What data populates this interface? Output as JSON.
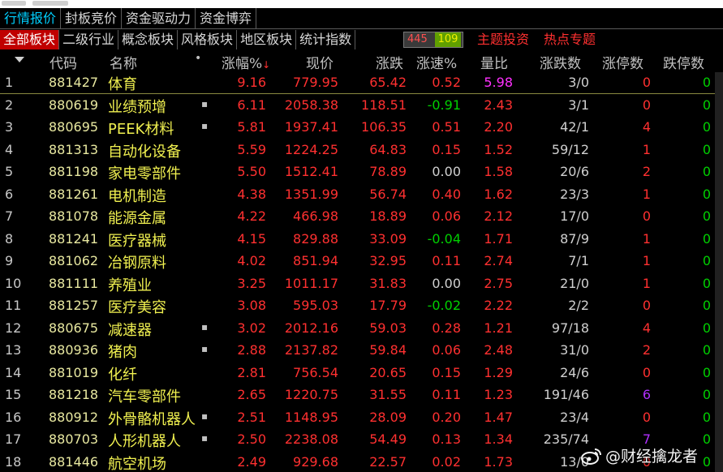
{
  "tabs_top": [
    "行情报价",
    "封板竞价",
    "资金驱动力",
    "资金博弈"
  ],
  "tabs_category": [
    "全部板块",
    "二级行业",
    "概念板块",
    "风格板块",
    "地区板块",
    "统计指数"
  ],
  "counter": {
    "up": "445",
    "down": "109"
  },
  "themes": {
    "theme_invest": "主题投资",
    "hot_topics": "热点专题"
  },
  "header": {
    "code": "代码",
    "name": "名称",
    "dot": "•",
    "pct": "涨幅%",
    "price": "现价",
    "change": "涨跌",
    "speed": "涨速%",
    "vol_ratio": "量比",
    "adv_dec": "涨跌数",
    "limit_up": "涨停数",
    "limit_down": "跌停数"
  },
  "rows": [
    {
      "no": "1",
      "code": "881427",
      "name": "体育",
      "dot": "",
      "pct": "9.16",
      "price": "779.95",
      "chg": "65.42",
      "spd": "0.52",
      "vol": "5.98",
      "adv": "3/0",
      "lu": "0",
      "ld": "0"
    },
    {
      "no": "2",
      "code": "880619",
      "name": "业绩预增",
      "dot": "▪",
      "pct": "6.11",
      "price": "2058.38",
      "chg": "118.51",
      "spd": "-0.91",
      "vol": "2.43",
      "adv": "3/1",
      "lu": "0",
      "ld": "0"
    },
    {
      "no": "3",
      "code": "880695",
      "name": "PEEK材料",
      "dot": "▪",
      "pct": "5.81",
      "price": "1937.41",
      "chg": "106.35",
      "spd": "0.51",
      "vol": "2.20",
      "adv": "42/1",
      "lu": "4",
      "ld": "0"
    },
    {
      "no": "4",
      "code": "881313",
      "name": "自动化设备",
      "dot": "",
      "pct": "5.59",
      "price": "1224.25",
      "chg": "64.83",
      "spd": "0.15",
      "vol": "1.52",
      "adv": "59/12",
      "lu": "1",
      "ld": "0"
    },
    {
      "no": "5",
      "code": "881198",
      "name": "家电零部件",
      "dot": "",
      "pct": "5.50",
      "price": "1512.41",
      "chg": "78.89",
      "spd": "0.00",
      "vol": "1.58",
      "adv": "20/6",
      "lu": "2",
      "ld": "0"
    },
    {
      "no": "6",
      "code": "881261",
      "name": "电机制造",
      "dot": "",
      "pct": "4.38",
      "price": "1351.99",
      "chg": "56.74",
      "spd": "0.40",
      "vol": "1.62",
      "adv": "23/3",
      "lu": "1",
      "ld": "0"
    },
    {
      "no": "7",
      "code": "881078",
      "name": "能源金属",
      "dot": "",
      "pct": "4.22",
      "price": "466.98",
      "chg": "18.89",
      "spd": "0.06",
      "vol": "2.12",
      "adv": "17/0",
      "lu": "0",
      "ld": "0"
    },
    {
      "no": "8",
      "code": "881241",
      "name": "医疗器械",
      "dot": "",
      "pct": "4.15",
      "price": "829.88",
      "chg": "33.09",
      "spd": "-0.04",
      "vol": "1.71",
      "adv": "87/9",
      "lu": "1",
      "ld": "0"
    },
    {
      "no": "9",
      "code": "881062",
      "name": "冶钢原料",
      "dot": "",
      "pct": "4.02",
      "price": "851.94",
      "chg": "32.95",
      "spd": "0.11",
      "vol": "2.74",
      "adv": "7/1",
      "lu": "1",
      "ld": "0"
    },
    {
      "no": "10",
      "code": "881111",
      "name": "养殖业",
      "dot": "",
      "pct": "3.25",
      "price": "1011.17",
      "chg": "31.83",
      "spd": "0.00",
      "vol": "2.75",
      "adv": "21/0",
      "lu": "1",
      "ld": "0"
    },
    {
      "no": "11",
      "code": "881257",
      "name": "医疗美容",
      "dot": "",
      "pct": "3.08",
      "price": "595.03",
      "chg": "17.79",
      "spd": "-0.02",
      "vol": "2.22",
      "adv": "2/2",
      "lu": "0",
      "ld": "0"
    },
    {
      "no": "12",
      "code": "880675",
      "name": "减速器",
      "dot": "▪",
      "pct": "3.02",
      "price": "2012.16",
      "chg": "59.03",
      "spd": "0.28",
      "vol": "1.21",
      "adv": "97/18",
      "lu": "4",
      "ld": "0"
    },
    {
      "no": "13",
      "code": "880936",
      "name": "猪肉",
      "dot": "▪",
      "pct": "2.88",
      "price": "2137.82",
      "chg": "59.84",
      "spd": "0.06",
      "vol": "2.48",
      "adv": "31/0",
      "lu": "2",
      "ld": "0"
    },
    {
      "no": "14",
      "code": "881019",
      "name": "化纤",
      "dot": "",
      "pct": "2.81",
      "price": "756.54",
      "chg": "20.65",
      "spd": "0.15",
      "vol": "1.29",
      "adv": "24/6",
      "lu": "0",
      "ld": "0"
    },
    {
      "no": "15",
      "code": "881218",
      "name": "汽车零部件",
      "dot": "",
      "pct": "2.65",
      "price": "1220.75",
      "chg": "31.55",
      "spd": "0.11",
      "vol": "1.23",
      "adv": "191/46",
      "lu": "6",
      "ld": "0"
    },
    {
      "no": "16",
      "code": "880912",
      "name": "外骨骼机器人",
      "dot": "▪",
      "pct": "2.51",
      "price": "1148.95",
      "chg": "28.09",
      "spd": "0.20",
      "vol": "1.47",
      "adv": "23/4",
      "lu": "0",
      "ld": "0"
    },
    {
      "no": "17",
      "code": "880703",
      "name": "人形机器人",
      "dot": "▪",
      "pct": "2.50",
      "price": "2238.08",
      "chg": "54.49",
      "spd": "0.13",
      "vol": "1.34",
      "adv": "235/74",
      "lu": "7",
      "ld": "0"
    },
    {
      "no": "18",
      "code": "881446",
      "name": "航空机场",
      "dot": "",
      "pct": "2.49",
      "price": "929.68",
      "chg": "22.57",
      "spd": "0.02",
      "vol": "1.73",
      "adv": "13/0",
      "lu": "0",
      "ld": "0"
    }
  ],
  "watermark": "@财经擒龙者",
  "colors": {
    "up": "#ff3030",
    "down": "#00d000",
    "flat": "#d0d0d0",
    "highlight_vol": "#ff30ff",
    "limit_up_special": "#b030ff",
    "name": "#f0f050",
    "code": "#e8e8a0"
  }
}
